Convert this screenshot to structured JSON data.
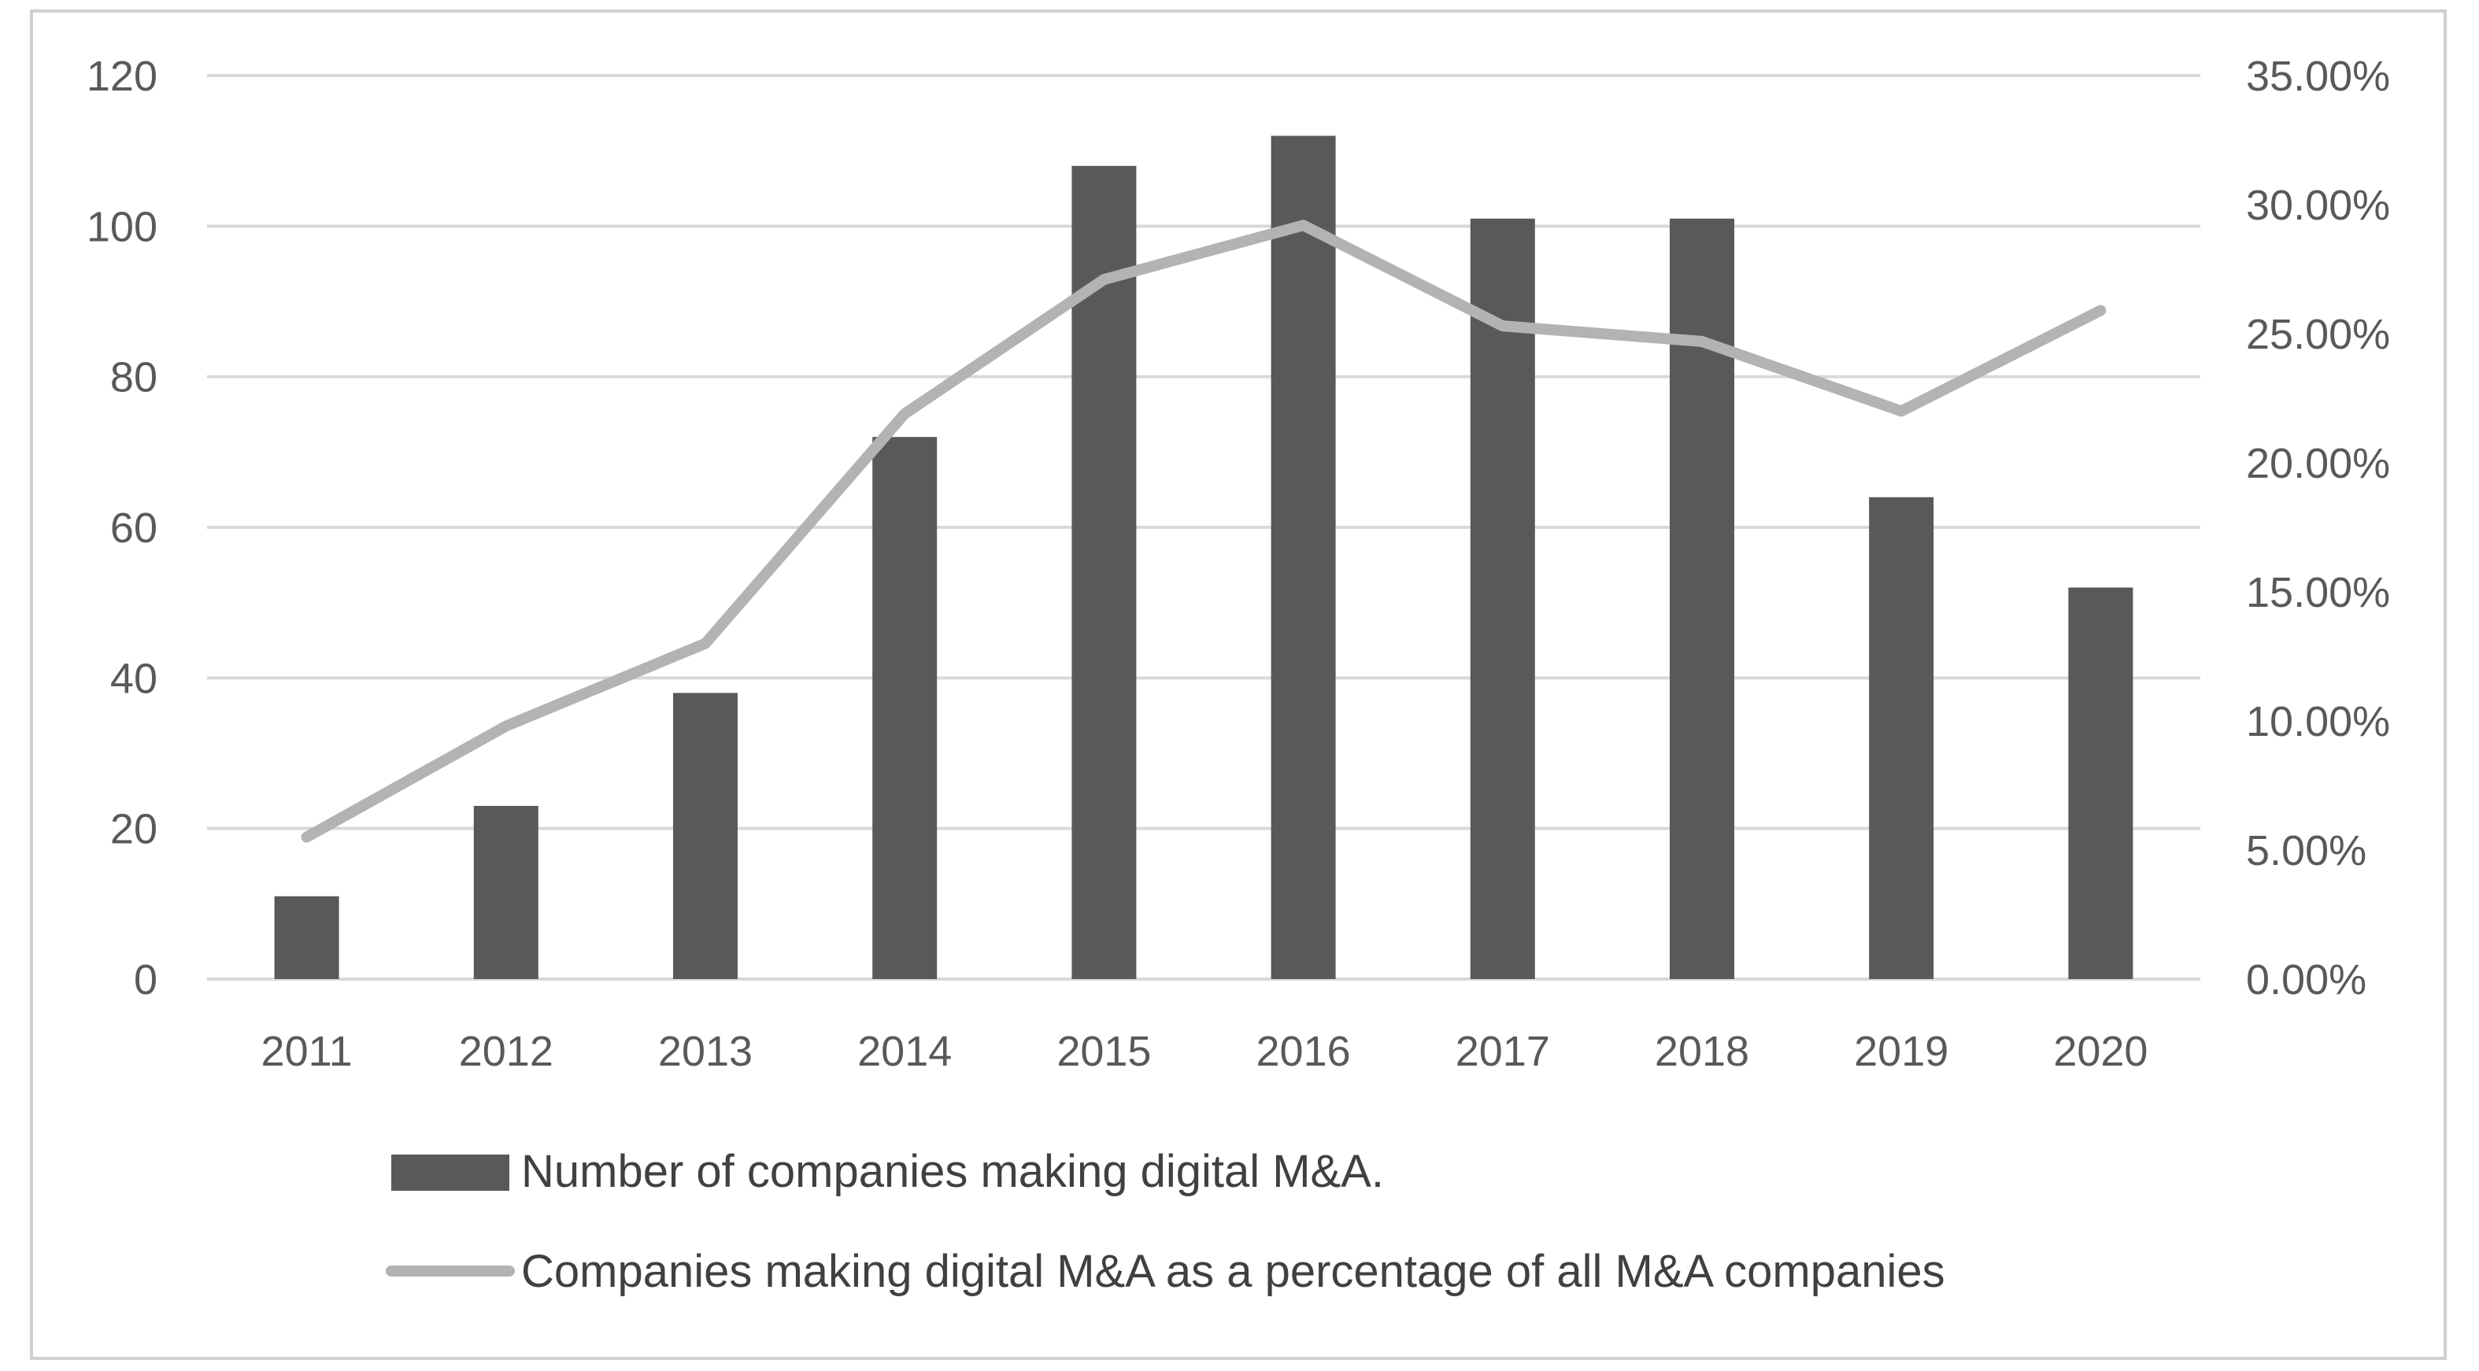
{
  "chart_data": {
    "type": "bar",
    "title": "",
    "xlabel": "",
    "ylabel": "",
    "categories": [
      "2011",
      "2012",
      "2013",
      "2014",
      "2015",
      "2016",
      "2017",
      "2018",
      "2019",
      "2020"
    ],
    "series": [
      {
        "name": "Number of companies making digital M&A.",
        "type": "bar",
        "axis": "left",
        "color": "#595959",
        "values": [
          11,
          23,
          38,
          72,
          108,
          112,
          101,
          101,
          64,
          52
        ]
      },
      {
        "name": "Companies making digital M&A as a percentage of all M&A companies",
        "type": "line",
        "axis": "right",
        "color": "#b3b3b3",
        "values": [
          0.055,
          0.098,
          0.13,
          0.219,
          0.271,
          0.292,
          0.253,
          0.247,
          0.22,
          0.259
        ]
      }
    ],
    "y_left": {
      "range": [
        0,
        120
      ],
      "ticks": [
        0,
        20,
        40,
        60,
        80,
        100,
        120
      ],
      "tick_labels": [
        "0",
        "20",
        "40",
        "60",
        "80",
        "100",
        "120"
      ]
    },
    "y_right": {
      "range": [
        0,
        0.35
      ],
      "ticks": [
        0,
        0.05,
        0.1,
        0.15,
        0.2,
        0.25,
        0.3,
        0.35
      ],
      "tick_labels": [
        "0.00%",
        "5.00%",
        "10.00%",
        "15.00%",
        "20.00%",
        "25.00%",
        "30.00%",
        "35.00%"
      ]
    },
    "grid": true,
    "legend": {
      "position": "bottom"
    }
  },
  "style": {
    "grid_color": "#d9d9d9",
    "border_color": "#d0d0d0",
    "axis_text_color": "#595959"
  }
}
